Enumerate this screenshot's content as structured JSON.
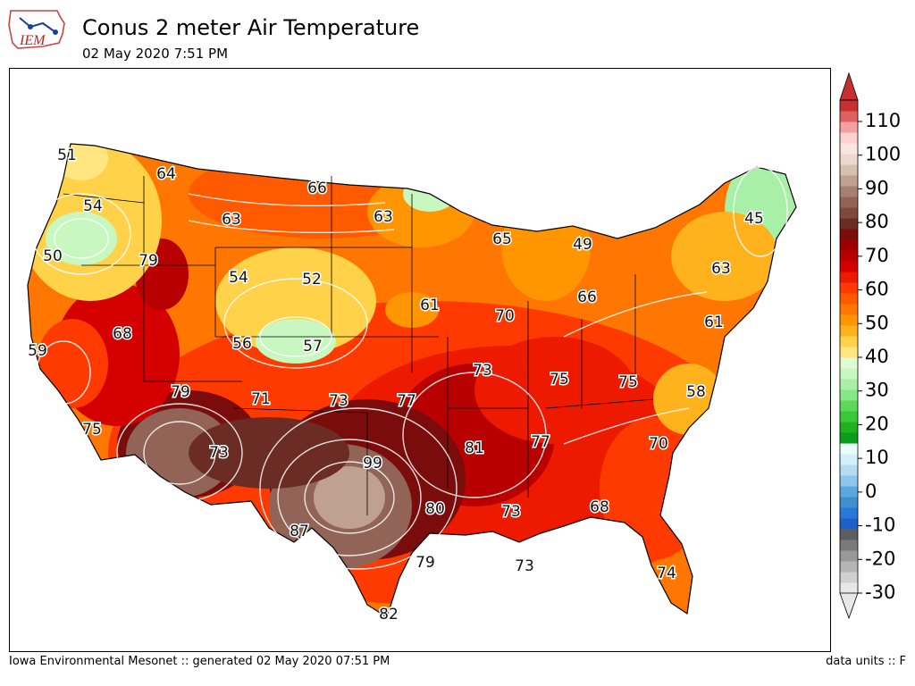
{
  "header": {
    "logo_text": "IEM",
    "title": "Conus 2 meter Air Temperature",
    "subtitle": "02 May 2020 7:51 PM"
  },
  "footer": {
    "left": "Iowa Environmental Mesonet :: generated 02 May 2020 07:51 PM",
    "right": "data units :: F"
  },
  "map": {
    "contour_labels": [
      "51",
      "64",
      "66",
      "54",
      "63",
      "63",
      "65",
      "49",
      "45",
      "50",
      "79",
      "54",
      "52",
      "61",
      "70",
      "66",
      "63",
      "68",
      "56",
      "57",
      "59",
      "79",
      "71",
      "73",
      "77",
      "73",
      "75",
      "75",
      "61",
      "58",
      "75",
      "73",
      "81",
      "77",
      "70",
      "99",
      "80",
      "73",
      "68",
      "87",
      "79",
      "73",
      "74",
      "82"
    ]
  },
  "colorbar": {
    "tick_labels": [
      "110",
      "100",
      "90",
      "80",
      "70",
      "60",
      "50",
      "40",
      "30",
      "20",
      "10",
      "0",
      "-10",
      "-20",
      "-30"
    ],
    "colors": [
      "#e8e8e8",
      "#d0d0d0",
      "#b4b4b4",
      "#999999",
      "#7a7a7a",
      "#5e5e5e",
      "#1f5fc8",
      "#2878d8",
      "#3f8ecf",
      "#5aa8e0",
      "#8cc6ee",
      "#b5dcf4",
      "#d2f0f7",
      "#eafcfc",
      "#0a9c1a",
      "#20b020",
      "#38c838",
      "#5bd95b",
      "#84e884",
      "#a8f0a8",
      "#c8f7c0",
      "#e0fcd4",
      "#ffe680",
      "#ffd24a",
      "#ffb21c",
      "#ff9500",
      "#ff7700",
      "#ff5a00",
      "#ff3a00",
      "#ee1a00",
      "#d40000",
      "#b80000",
      "#9c0000",
      "#7a0c0c",
      "#6a2c24",
      "#7e4a3e",
      "#916457",
      "#a88070",
      "#c0a090",
      "#d8c0ae",
      "#ecd8cc",
      "#f9e6e0",
      "#ffd0d0",
      "#f4a0a0",
      "#e06060",
      "#c83030"
    ]
  }
}
